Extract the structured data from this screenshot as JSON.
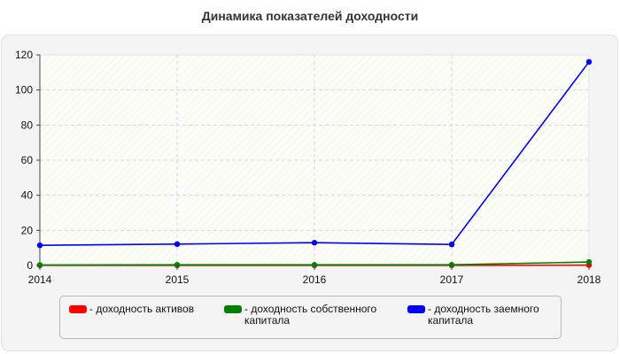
{
  "chart_data": {
    "type": "line",
    "title": "Динамика показателей доходности",
    "x": [
      2014,
      2015,
      2016,
      2017,
      2018
    ],
    "x_tick_labels": [
      "2014",
      "2015",
      "2016",
      "2017",
      "2018"
    ],
    "y_tick_labels": [
      "0",
      "20",
      "40",
      "60",
      "80",
      "100",
      "120"
    ],
    "ylim": [
      0,
      120
    ],
    "grid": true,
    "legend_position": "bottom",
    "series": [
      {
        "name": "- доходность активов",
        "color": "#ff0000",
        "values": [
          0.1,
          0.1,
          0.1,
          0.1,
          0.2
        ]
      },
      {
        "name": "- доходность собственного капитала",
        "color": "#008000",
        "values": [
          0.3,
          0.4,
          0.4,
          0.4,
          2
        ]
      },
      {
        "name": "- доходность заемного капитала",
        "color": "#0000ff",
        "values": [
          11.5,
          12.2,
          13,
          12,
          116
        ]
      }
    ]
  }
}
